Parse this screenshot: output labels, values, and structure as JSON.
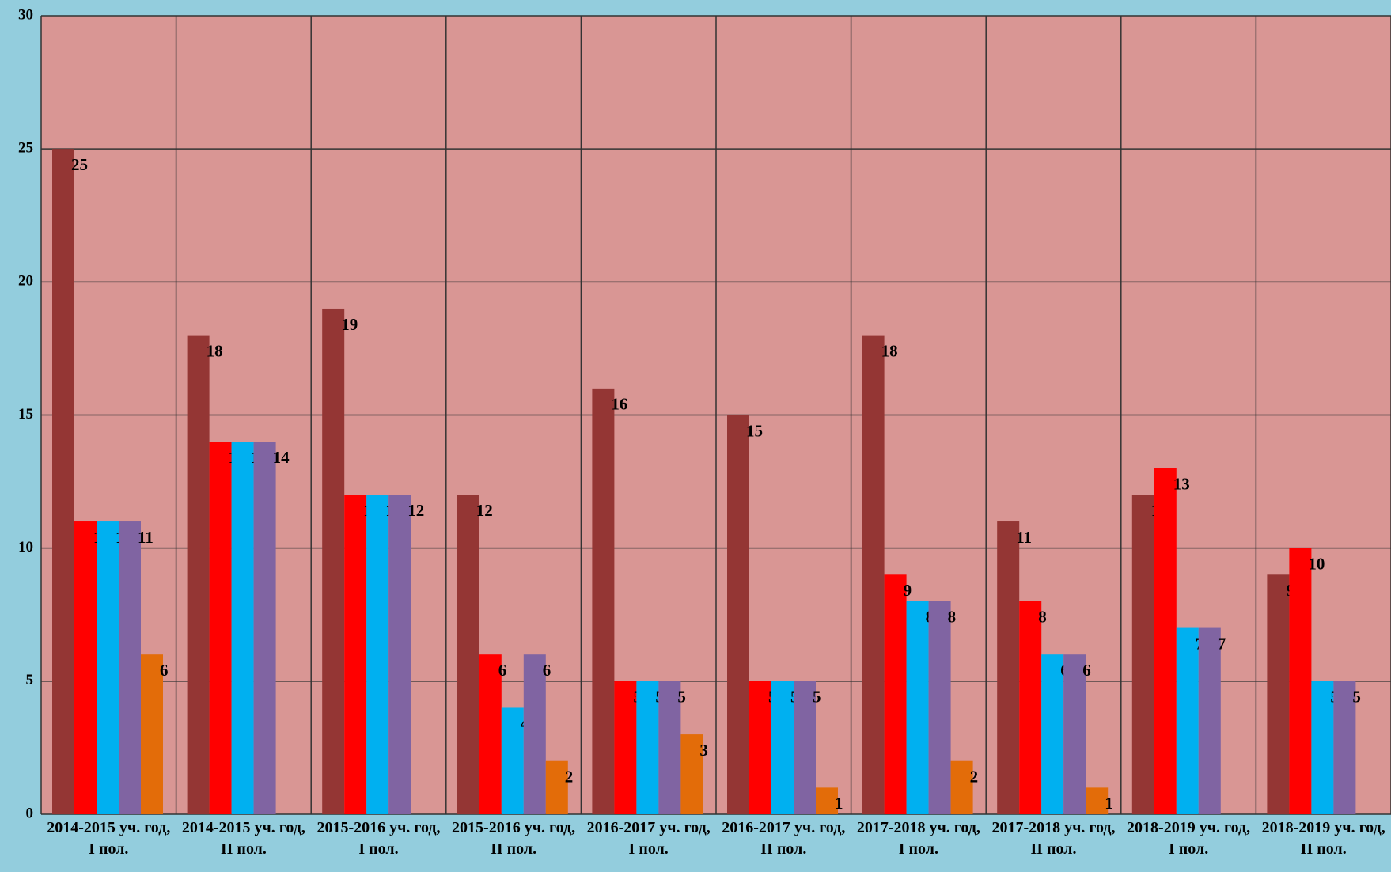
{
  "chart_data": {
    "type": "bar",
    "categories": [
      "2014-2015 уч. год, I пол.",
      "2014-2015 уч. год, II пол.",
      "2015-2016 уч. год, I пол.",
      "2015-2016 уч. год, II пол.",
      "2016-2017 уч. год, I пол.",
      "2016-2017 уч. год, II пол.",
      "2017-2018 уч. год, I пол.",
      "2017-2018 уч. год, II пол.",
      "2018-2019 уч. год, I пол.",
      "2018-2019 уч. год, II пол."
    ],
    "series": [
      {
        "color": "#943634",
        "values": [
          25,
          18,
          19,
          12,
          16,
          15,
          18,
          11,
          12,
          9
        ]
      },
      {
        "color": "#ff0000",
        "values": [
          11,
          14,
          12,
          6,
          5,
          5,
          9,
          8,
          13,
          10
        ]
      },
      {
        "color": "#00b0f0",
        "values": [
          11,
          14,
          12,
          4,
          5,
          5,
          8,
          6,
          7,
          5
        ]
      },
      {
        "color": "#8064a2",
        "values": [
          11,
          14,
          12,
          6,
          5,
          5,
          8,
          6,
          7,
          5
        ]
      },
      {
        "color": "#e36c09",
        "values": [
          6,
          null,
          null,
          2,
          3,
          1,
          2,
          1,
          null,
          null
        ]
      }
    ],
    "ylim": [
      0,
      30
    ],
    "yticks": [
      0,
      5,
      10,
      15,
      20,
      25,
      30
    ],
    "grid": true
  }
}
